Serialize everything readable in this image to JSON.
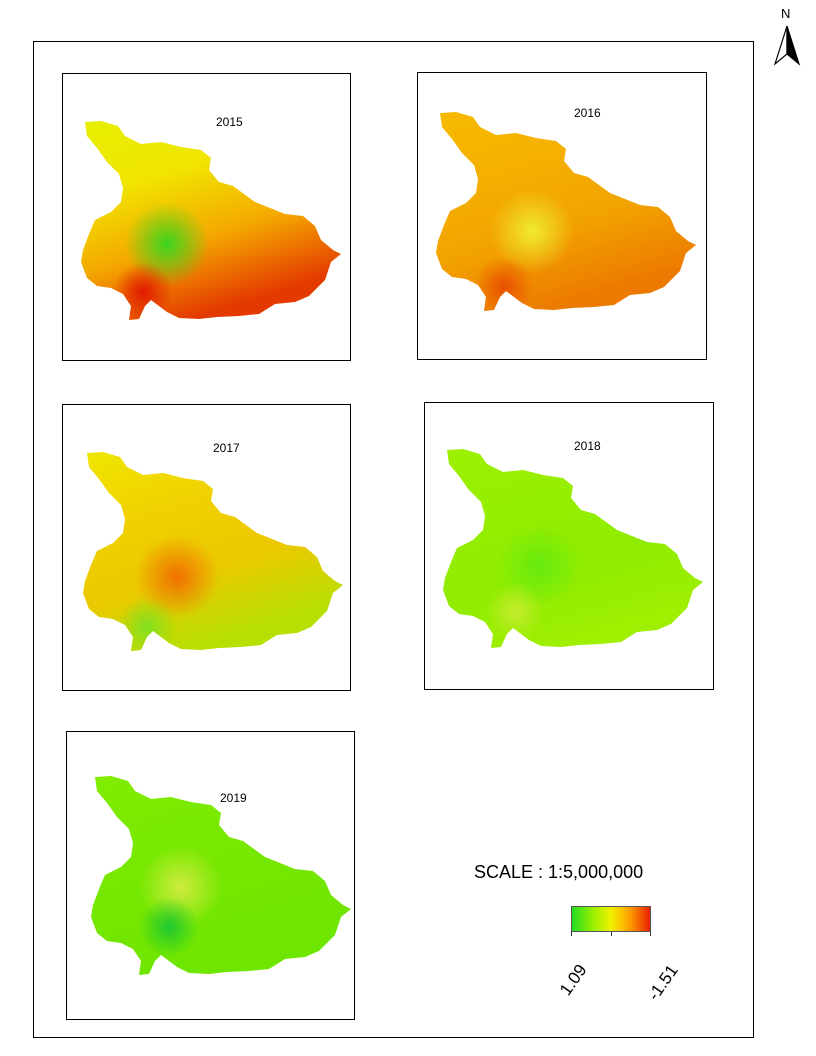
{
  "panels": [
    {
      "year": "2015",
      "fills": [
        "#e6ef00",
        "#f1e500",
        "#f4a800",
        "#e43a00"
      ],
      "center_tint": "#39d61e",
      "hotspot": "#e01800"
    },
    {
      "year": "2016",
      "fills": [
        "#f6ba00",
        "#f5b000",
        "#f2a200",
        "#ec7a00"
      ],
      "center_tint": "#f0ea30",
      "hotspot": "#e85000"
    },
    {
      "year": "2017",
      "fills": [
        "#efe600",
        "#f0d200",
        "#ecc800",
        "#b6e000"
      ],
      "center_tint": "#f07000",
      "hotspot": "#80e020"
    },
    {
      "year": "2018",
      "fills": [
        "#9cf000",
        "#96ee00",
        "#8fec00",
        "#9eef00"
      ],
      "center_tint": "#66ea10",
      "hotspot": "#c4ec30"
    },
    {
      "year": "2019",
      "fills": [
        "#80ec00",
        "#7aea00",
        "#74e600",
        "#6ee600"
      ],
      "center_tint": "#d0ec40",
      "hotspot": "#20c830"
    }
  ],
  "north_arrow": {
    "label": "N",
    "icon": "north-arrow-icon"
  },
  "legend": {
    "scale_text": "SCALE : 1:5,000,000",
    "min_label": "1.09",
    "max_label": "-1.51",
    "ramp_colors": [
      "#22dd22",
      "#9ef000",
      "#f0f000",
      "#ffa000",
      "#e82000"
    ]
  }
}
